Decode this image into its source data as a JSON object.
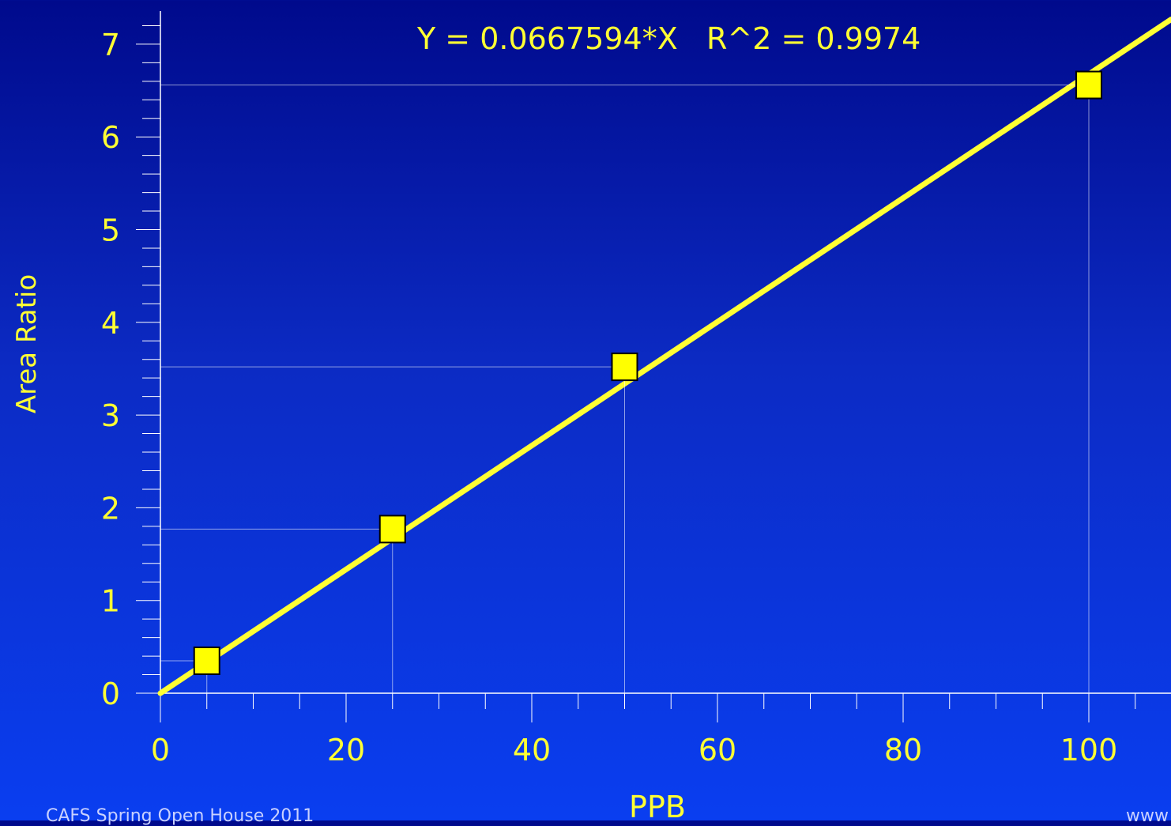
{
  "chart_data": {
    "type": "scatter",
    "annotation": "Y = 0.0667594*X   R^2 = 0.9974",
    "xlabel": "PPB",
    "ylabel": "Area Ratio",
    "xlim": [
      0,
      109
    ],
    "ylim": [
      0,
      7.3
    ],
    "x_ticks": [
      0,
      20,
      40,
      60,
      80,
      100
    ],
    "y_ticks": [
      0,
      1,
      2,
      3,
      4,
      5,
      6,
      7
    ],
    "fit": {
      "slope": 0.0667594,
      "intercept": 0
    },
    "series": [
      {
        "x": [
          5,
          25,
          50,
          100
        ],
        "y": [
          0.35,
          1.77,
          3.52,
          6.56
        ]
      }
    ],
    "grid": false,
    "colors": {
      "foreground": "#ffff33",
      "marker": "#ffff00",
      "axis": "#ffffff"
    }
  },
  "footer": {
    "left": "CAFS  Spring Open House 2011",
    "right": "www"
  }
}
